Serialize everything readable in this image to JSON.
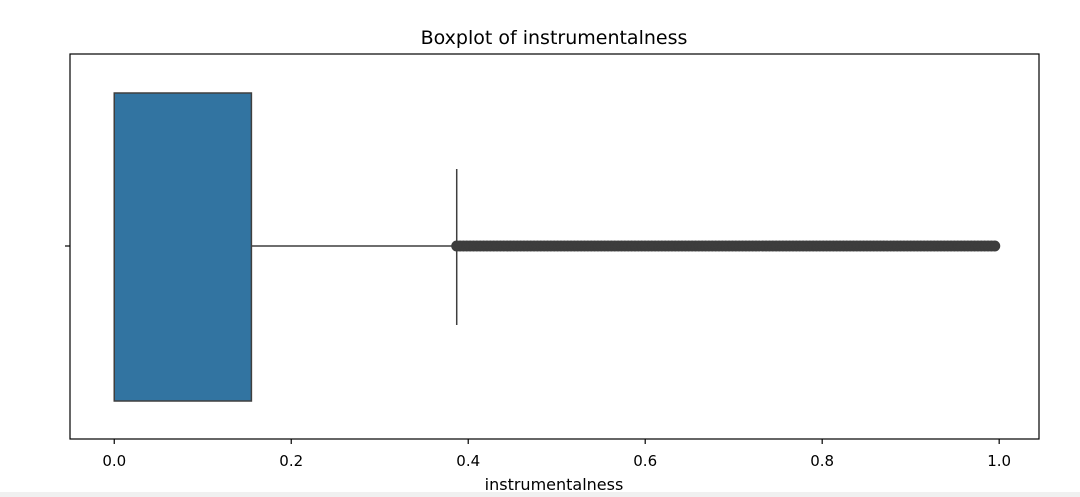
{
  "chart_data": {
    "type": "box",
    "title": "Boxplot of instrumentalness",
    "xlabel": "instrumentalness",
    "ylabel": "",
    "xlim": [
      -0.05,
      1.045
    ],
    "xticks": [
      0.0,
      0.2,
      0.4,
      0.6,
      0.8,
      1.0
    ],
    "xtick_labels": [
      "0.0",
      "0.2",
      "0.4",
      "0.6",
      "0.8",
      "1.0"
    ],
    "box": {
      "min": 0.0,
      "q1": 0.0,
      "median": 0.0,
      "q3": 0.155,
      "whisker_high": 0.387,
      "outliers_range": [
        0.387,
        0.995
      ]
    },
    "orientation": "horizontal",
    "grid": false,
    "colors": {
      "box_fill": "#3274a1",
      "line": "#3f3f3f",
      "outlier": "#3d3d3d"
    }
  }
}
